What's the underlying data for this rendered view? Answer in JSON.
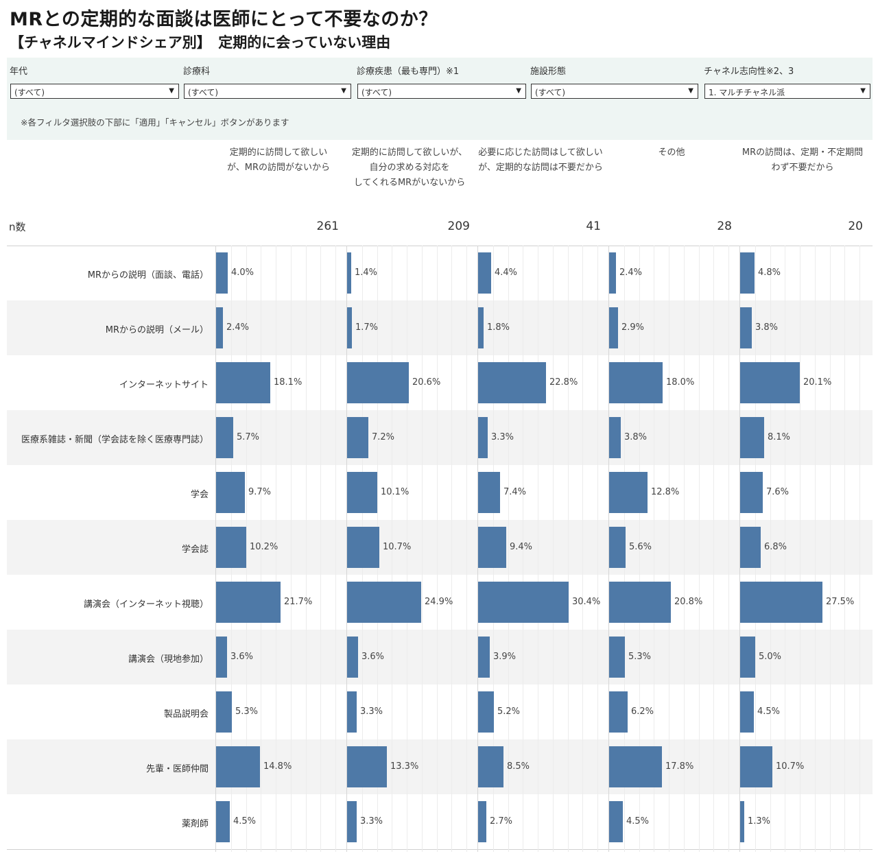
{
  "header": {
    "title": "MRとの定期的な面談は医師にとって不要なのか？",
    "subtitle": "【チャネルマインドシェア別】　定期的に会っていない理由"
  },
  "filters": {
    "items": [
      {
        "label": "年代",
        "value": "(すべて)"
      },
      {
        "label": "診療科",
        "value": "(すべて)"
      },
      {
        "label": "診療疾患（最も専門）※1",
        "value": "(すべて)"
      },
      {
        "label": "施設形態",
        "value": "(すべて)"
      },
      {
        "label": "チャネル志向性※2、3",
        "value": "1. マルチチャネル派"
      }
    ],
    "note": "※各フィルタ選択肢の下部に「適用」「キャンセル」ボタンがあります"
  },
  "icons": {
    "dropdown": "chevron-down-icon"
  },
  "colors": {
    "bar": "#4e79a7",
    "panel_bg": "#eef5f3",
    "row_shade": "#f3f3f3"
  },
  "chart_data": {
    "type": "bar",
    "orientation": "horizontal",
    "panels": [
      {
        "name": "定期的に訪問して欲しいが、MRの訪問がないから",
        "lines": [
          "定期的に訪問して欲しい",
          "が、MRの訪問がないから"
        ],
        "n": "261"
      },
      {
        "name": "定期的に訪問して欲しいが、自分の求める対応をしてくれるMRがいないから",
        "lines": [
          "定期的に訪問して欲しいが、",
          "自分の求める対応を",
          "してくれるMRがいないから"
        ],
        "n": "209"
      },
      {
        "name": "必要に応じた訪問はして欲しいが、定期的な訪問は不要だから",
        "lines": [
          "必要に応じた訪問はして欲しい",
          "が、定期的な訪問は不要だから"
        ],
        "n": "41"
      },
      {
        "name": "その他",
        "lines": [
          "その他"
        ],
        "n": "28"
      },
      {
        "name": "MRの訪問は、定期・不定期問わず不要だから",
        "lines": [
          "MRの訪問は、定期・不定期問",
          "わず不要だから"
        ],
        "n": "20"
      }
    ],
    "n_label": "n数",
    "categories": [
      "MRからの説明（面談、電話）",
      "MRからの説明（メール）",
      "インターネットサイト",
      "医療系雑誌・新聞（学会誌を除く医療専門誌）",
      "学会",
      "学会誌",
      "講演会（インターネット視聴）",
      "講演会（現地参加）",
      "製品説明会",
      "先輩・医師仲間",
      "薬剤師"
    ],
    "values": [
      [
        4.0,
        2.4,
        18.1,
        5.7,
        9.7,
        10.2,
        21.7,
        3.6,
        5.3,
        14.8,
        4.5
      ],
      [
        1.4,
        1.7,
        20.6,
        7.2,
        10.1,
        10.7,
        24.9,
        3.6,
        3.3,
        13.3,
        3.3
      ],
      [
        4.4,
        1.8,
        22.8,
        3.3,
        7.4,
        9.4,
        30.4,
        3.9,
        5.2,
        8.5,
        2.7
      ],
      [
        2.4,
        2.9,
        18.0,
        3.8,
        12.8,
        5.6,
        20.8,
        5.3,
        6.2,
        17.8,
        4.5
      ],
      [
        4.8,
        3.8,
        20.1,
        8.1,
        7.6,
        6.8,
        27.5,
        5.0,
        4.5,
        10.7,
        1.3
      ]
    ],
    "labels": [
      [
        "4.0%",
        "2.4%",
        "18.1%",
        "5.7%",
        "9.7%",
        "10.2%",
        "21.7%",
        "3.6%",
        "5.3%",
        "14.8%",
        "4.5%"
      ],
      [
        "1.4%",
        "1.7%",
        "20.6%",
        "7.2%",
        "10.1%",
        "10.7%",
        "24.9%",
        "3.6%",
        "3.3%",
        "13.3%",
        "3.3%"
      ],
      [
        "4.4%",
        "1.8%",
        "22.8%",
        "3.3%",
        "7.4%",
        "9.4%",
        "30.4%",
        "3.9%",
        "5.2%",
        "8.5%",
        "2.7%"
      ],
      [
        "2.4%",
        "2.9%",
        "18.0%",
        "3.8%",
        "12.8%",
        "5.6%",
        "20.8%",
        "5.3%",
        "6.2%",
        "17.8%",
        "4.5%"
      ],
      [
        "4.8%",
        "3.8%",
        "20.1%",
        "8.1%",
        "7.6%",
        "6.8%",
        "27.5%",
        "5.0%",
        "4.5%",
        "10.7%",
        "1.3%"
      ]
    ],
    "unit": "%",
    "xlim": [
      0,
      43
    ],
    "grid": true
  }
}
